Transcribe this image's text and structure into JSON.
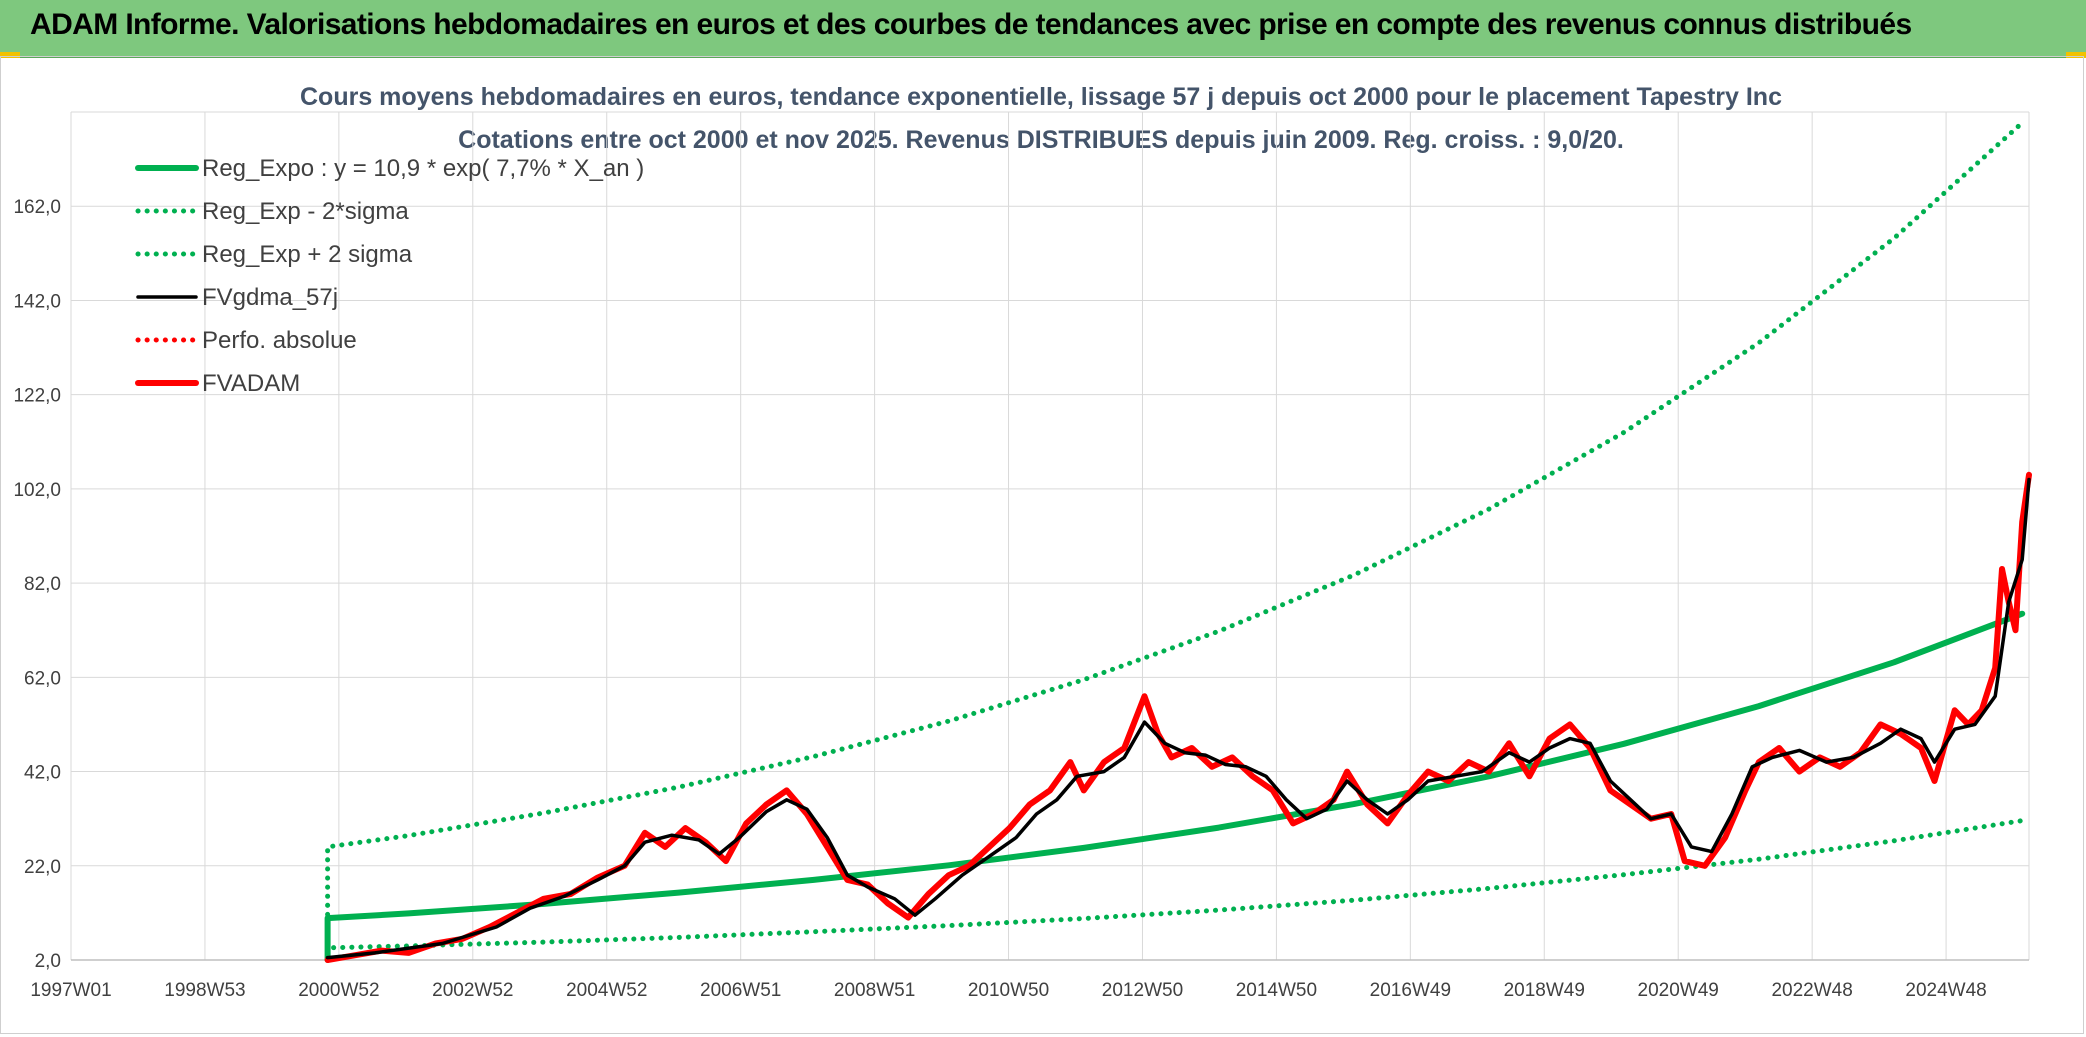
{
  "header": {
    "title": "ADAM Informe. Valorisations hebdomadaires en euros et des courbes de tendances avec prise en compte des revenus connus distribués"
  },
  "chart_data": {
    "type": "line",
    "title": "Cours moyens hebdomadaires en euros, tendance exponentielle, lissage 57 j depuis oct 2000 pour le placement Tapestry Inc",
    "subtitle": "Cotations entre oct 2000 et nov 2025. Revenus DISTRIBUES depuis juin 2009. Reg. croiss. : 9,0/20.",
    "x_ticks": [
      "1997W01",
      "1998W53",
      "2000W52",
      "2002W52",
      "2004W52",
      "2006W51",
      "2008W51",
      "2010W50",
      "2012W50",
      "2014W50",
      "2016W49",
      "2018W49",
      "2020W49",
      "2022W48",
      "2024W48"
    ],
    "x_range": [
      1997.0,
      2026.0
    ],
    "y_ticks": [
      "2,0",
      "22,0",
      "42,0",
      "62,0",
      "82,0",
      "102,0",
      "122,0",
      "142,0",
      "162,0"
    ],
    "ylim": [
      2.0,
      182.0
    ],
    "grid": true,
    "legend_position": "top-left",
    "colors": {
      "green": "#00b050",
      "black": "#000000",
      "red": "#ff0000"
    },
    "series": [
      {
        "name": "Reg_Expo : y = 10,9 * exp( 7,7% *  X_an )",
        "style": "solid-thick",
        "color": "#00b050",
        "points": [
          [
            2000.8,
            2.0
          ],
          [
            2000.8,
            10.9
          ],
          [
            2002,
            11.9
          ],
          [
            2004,
            13.9
          ],
          [
            2006,
            16.3
          ],
          [
            2008,
            19.0
          ],
          [
            2010,
            22.1
          ],
          [
            2012,
            25.8
          ],
          [
            2014,
            30.1
          ],
          [
            2016,
            35.1
          ],
          [
            2018,
            41.0
          ],
          [
            2020,
            47.9
          ],
          [
            2022,
            55.9
          ],
          [
            2024,
            65.2
          ],
          [
            2025.9,
            75.5
          ]
        ]
      },
      {
        "name": "Reg_Exp - 2*sigma",
        "style": "dotted",
        "color": "#00b050",
        "points": [
          [
            2000.8,
            2.0
          ],
          [
            2000.8,
            4.6
          ],
          [
            2002,
            5.0
          ],
          [
            2004,
            5.8
          ],
          [
            2006,
            6.8
          ],
          [
            2008,
            8.0
          ],
          [
            2010,
            9.3
          ],
          [
            2012,
            10.8
          ],
          [
            2014,
            12.6
          ],
          [
            2016,
            14.7
          ],
          [
            2018,
            17.2
          ],
          [
            2020,
            20.1
          ],
          [
            2022,
            23.4
          ],
          [
            2024,
            27.3
          ],
          [
            2025.9,
            31.6
          ]
        ]
      },
      {
        "name": "Reg_Exp + 2 sigma",
        "style": "dotted",
        "color": "#00b050",
        "points": [
          [
            2000.8,
            2.0
          ],
          [
            2000.8,
            26.0
          ],
          [
            2002,
            28.4
          ],
          [
            2004,
            33.2
          ],
          [
            2006,
            38.7
          ],
          [
            2008,
            45.2
          ],
          [
            2010,
            52.7
          ],
          [
            2012,
            61.5
          ],
          [
            2014,
            71.8
          ],
          [
            2016,
            83.7
          ],
          [
            2018,
            97.7
          ],
          [
            2020,
            114.0
          ],
          [
            2022,
            133.0
          ],
          [
            2024,
            155.2
          ],
          [
            2025.9,
            179.7
          ]
        ]
      },
      {
        "name": "FVgdma_57j",
        "style": "solid",
        "color": "#000000",
        "points": [
          [
            2000.8,
            2.5
          ],
          [
            2001.5,
            3.5
          ],
          [
            2002.5,
            5.5
          ],
          [
            2003.3,
            9.0
          ],
          [
            2003.8,
            13.0
          ],
          [
            2004.3,
            15.5
          ],
          [
            2004.8,
            19.0
          ],
          [
            2005.2,
            22.0
          ],
          [
            2005.5,
            27.0
          ],
          [
            2005.9,
            28.5
          ],
          [
            2006.3,
            27.5
          ],
          [
            2006.6,
            24.5
          ],
          [
            2006.9,
            28.0
          ],
          [
            2007.3,
            33.5
          ],
          [
            2007.6,
            36.0
          ],
          [
            2007.9,
            34.0
          ],
          [
            2008.2,
            28.0
          ],
          [
            2008.5,
            20.0
          ],
          [
            2008.8,
            17.5
          ],
          [
            2009.2,
            15.0
          ],
          [
            2009.5,
            11.5
          ],
          [
            2009.8,
            15.0
          ],
          [
            2010.2,
            20.0
          ],
          [
            2010.6,
            24.0
          ],
          [
            2011.0,
            28.0
          ],
          [
            2011.3,
            33.0
          ],
          [
            2011.6,
            36.0
          ],
          [
            2011.9,
            41.0
          ],
          [
            2012.3,
            42.0
          ],
          [
            2012.6,
            45.0
          ],
          [
            2012.9,
            52.5
          ],
          [
            2013.2,
            48.0
          ],
          [
            2013.5,
            46.0
          ],
          [
            2013.8,
            45.5
          ],
          [
            2014.1,
            43.5
          ],
          [
            2014.4,
            43.0
          ],
          [
            2014.7,
            41.0
          ],
          [
            2015.0,
            36.0
          ],
          [
            2015.3,
            32.0
          ],
          [
            2015.6,
            34.0
          ],
          [
            2015.9,
            40.0
          ],
          [
            2016.2,
            36.0
          ],
          [
            2016.5,
            33.0
          ],
          [
            2016.8,
            36.0
          ],
          [
            2017.1,
            40.0
          ],
          [
            2017.5,
            41.0
          ],
          [
            2017.9,
            42.0
          ],
          [
            2018.3,
            46.0
          ],
          [
            2018.6,
            44.0
          ],
          [
            2018.9,
            47.0
          ],
          [
            2019.2,
            49.0
          ],
          [
            2019.5,
            48.0
          ],
          [
            2019.8,
            40.0
          ],
          [
            2020.1,
            36.0
          ],
          [
            2020.4,
            32.0
          ],
          [
            2020.7,
            33.0
          ],
          [
            2021.0,
            26.0
          ],
          [
            2021.3,
            25.0
          ],
          [
            2021.6,
            33.0
          ],
          [
            2021.9,
            43.0
          ],
          [
            2022.2,
            45.0
          ],
          [
            2022.6,
            46.5
          ],
          [
            2023.0,
            44.0
          ],
          [
            2023.4,
            45.0
          ],
          [
            2023.8,
            48.0
          ],
          [
            2024.1,
            51.0
          ],
          [
            2024.4,
            49.0
          ],
          [
            2024.6,
            44.0
          ],
          [
            2024.9,
            51.0
          ],
          [
            2025.2,
            52.0
          ],
          [
            2025.5,
            58.0
          ],
          [
            2025.7,
            78.0
          ],
          [
            2025.9,
            87.0
          ],
          [
            2026.0,
            104.0
          ]
        ]
      },
      {
        "name": "Perfo. absolue",
        "style": "dotted",
        "color": "#ff0000",
        "points": []
      },
      {
        "name": "FVADAM",
        "style": "solid-thick",
        "color": "#ff0000",
        "points": [
          [
            2000.8,
            2.0
          ],
          [
            2001.2,
            3.0
          ],
          [
            2001.6,
            4.0
          ],
          [
            2002.0,
            3.5
          ],
          [
            2002.4,
            5.5
          ],
          [
            2002.8,
            6.5
          ],
          [
            2003.2,
            9.0
          ],
          [
            2003.6,
            12.0
          ],
          [
            2004.0,
            15.0
          ],
          [
            2004.4,
            16.0
          ],
          [
            2004.8,
            19.5
          ],
          [
            2005.2,
            22.0
          ],
          [
            2005.5,
            29.0
          ],
          [
            2005.8,
            26.0
          ],
          [
            2006.1,
            30.0
          ],
          [
            2006.4,
            27.0
          ],
          [
            2006.7,
            23.0
          ],
          [
            2007.0,
            31.0
          ],
          [
            2007.3,
            35.0
          ],
          [
            2007.6,
            38.0
          ],
          [
            2007.9,
            33.0
          ],
          [
            2008.2,
            26.0
          ],
          [
            2008.5,
            19.0
          ],
          [
            2008.8,
            18.0
          ],
          [
            2009.1,
            14.0
          ],
          [
            2009.4,
            11.0
          ],
          [
            2009.7,
            16.0
          ],
          [
            2010.0,
            20.0
          ],
          [
            2010.3,
            22.0
          ],
          [
            2010.6,
            26.0
          ],
          [
            2010.9,
            30.0
          ],
          [
            2011.2,
            35.0
          ],
          [
            2011.5,
            38.0
          ],
          [
            2011.8,
            44.0
          ],
          [
            2012.0,
            38.0
          ],
          [
            2012.3,
            44.0
          ],
          [
            2012.6,
            47.0
          ],
          [
            2012.9,
            58.0
          ],
          [
            2013.1,
            50.0
          ],
          [
            2013.3,
            45.0
          ],
          [
            2013.6,
            47.0
          ],
          [
            2013.9,
            43.0
          ],
          [
            2014.2,
            45.0
          ],
          [
            2014.5,
            41.0
          ],
          [
            2014.8,
            38.0
          ],
          [
            2015.1,
            31.0
          ],
          [
            2015.4,
            33.0
          ],
          [
            2015.7,
            36.0
          ],
          [
            2015.9,
            42.0
          ],
          [
            2016.2,
            35.0
          ],
          [
            2016.5,
            31.0
          ],
          [
            2016.8,
            37.0
          ],
          [
            2017.1,
            42.0
          ],
          [
            2017.4,
            40.0
          ],
          [
            2017.7,
            44.0
          ],
          [
            2018.0,
            42.0
          ],
          [
            2018.3,
            48.0
          ],
          [
            2018.6,
            41.0
          ],
          [
            2018.9,
            49.0
          ],
          [
            2019.2,
            52.0
          ],
          [
            2019.5,
            47.0
          ],
          [
            2019.8,
            38.0
          ],
          [
            2020.1,
            35.0
          ],
          [
            2020.4,
            32.0
          ],
          [
            2020.7,
            33.0
          ],
          [
            2020.9,
            23.0
          ],
          [
            2021.2,
            22.0
          ],
          [
            2021.5,
            28.0
          ],
          [
            2021.8,
            38.0
          ],
          [
            2022.0,
            44.0
          ],
          [
            2022.3,
            47.0
          ],
          [
            2022.6,
            42.0
          ],
          [
            2022.9,
            45.0
          ],
          [
            2023.2,
            43.0
          ],
          [
            2023.5,
            46.0
          ],
          [
            2023.8,
            52.0
          ],
          [
            2024.1,
            50.0
          ],
          [
            2024.4,
            47.0
          ],
          [
            2024.6,
            40.0
          ],
          [
            2024.9,
            55.0
          ],
          [
            2025.1,
            52.0
          ],
          [
            2025.3,
            55.0
          ],
          [
            2025.5,
            64.0
          ],
          [
            2025.6,
            85.0
          ],
          [
            2025.7,
            78.0
          ],
          [
            2025.8,
            72.0
          ],
          [
            2025.9,
            95.0
          ],
          [
            2026.0,
            105.0
          ]
        ]
      }
    ]
  }
}
